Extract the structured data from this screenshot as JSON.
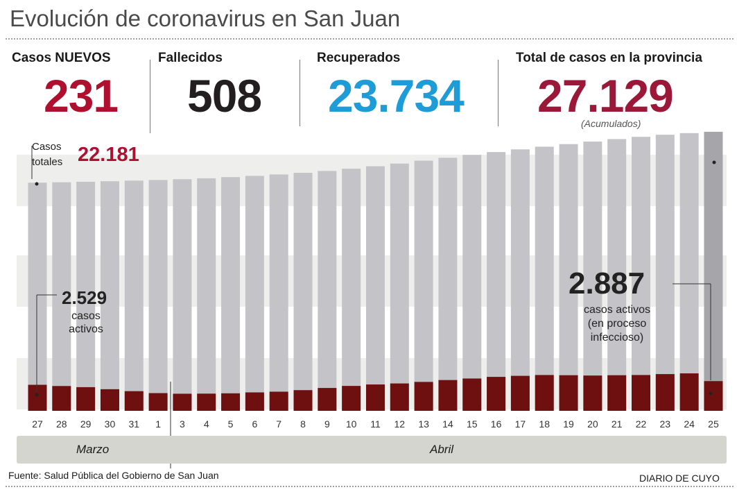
{
  "title": "Evolución de coronavirus en San Juan",
  "stats": [
    {
      "label": "Casos NUEVOS",
      "value": "231",
      "color": "#b01030"
    },
    {
      "label": "Fallecidos",
      "value": "508",
      "color": "#231f20"
    },
    {
      "label": "Recuperados",
      "value": "23.734",
      "color": "#1e9cd7"
    },
    {
      "label": "Total de casos en la provincia",
      "value": "27.129",
      "color": "#9b1838"
    }
  ],
  "acumulados": "(Acumulados)",
  "chart_data": {
    "type": "bar",
    "categories": [
      "27",
      "28",
      "29",
      "30",
      "31",
      "1",
      "3",
      "4",
      "5",
      "6",
      "7",
      "8",
      "9",
      "10",
      "11",
      "12",
      "13",
      "14",
      "15",
      "16",
      "17",
      "18",
      "19",
      "20",
      "21",
      "22",
      "23",
      "24",
      "25"
    ],
    "months": [
      "Marzo",
      "Abril"
    ],
    "series": [
      {
        "name": "Casos totales",
        "color": "#c4c4c8",
        "highlight_color": "#a6a6aa",
        "values": [
          22181,
          22220,
          22270,
          22320,
          22380,
          22440,
          22520,
          22610,
          22720,
          22840,
          22980,
          23140,
          23320,
          23540,
          23780,
          24040,
          24320,
          24600,
          24880,
          25160,
          25420,
          25680,
          25930,
          26180,
          26420,
          26640,
          26840,
          27000,
          27129
        ]
      },
      {
        "name": "casos activos",
        "color": "#6e1010",
        "values": [
          2529,
          2410,
          2300,
          2100,
          1910,
          1720,
          1660,
          1670,
          1700,
          1790,
          1860,
          2010,
          2220,
          2420,
          2560,
          2660,
          2810,
          2990,
          3140,
          3300,
          3400,
          3480,
          3460,
          3430,
          3460,
          3480,
          3570,
          3640,
          2887
        ]
      }
    ],
    "annotations": {
      "total_first_label": "Casos totales",
      "total_first_value": "22.181",
      "active_first_value": "2.529",
      "active_first_label": "casos activos",
      "active_last_value": "2.887",
      "active_last_label": "casos activos (en proceso infeccioso)"
    },
    "ylim": [
      0,
      28000
    ],
    "grid": false
  },
  "source": "Fuente: Salud Pública del Gobierno de San Juan",
  "brand": "DIARIO DE CUYO"
}
